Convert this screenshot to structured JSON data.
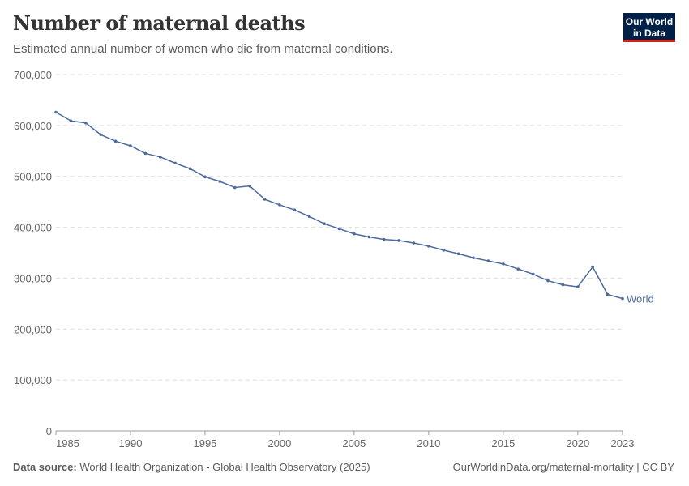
{
  "header": {
    "title": "Number of maternal deaths",
    "subtitle": "Estimated annual number of women who die from maternal conditions.",
    "logo": "Our World in Data"
  },
  "footer": {
    "source_label": "Data source:",
    "source": "World Health Organization - Global Health Observatory (2025)",
    "url": "OurWorldinData.org/maternal-mortality | CC BY"
  },
  "colors": {
    "line": "#4c6a9c",
    "grid": "#dddddd",
    "text": "#666666"
  },
  "chart_data": {
    "type": "line",
    "title": "Number of maternal deaths",
    "xlabel": "",
    "ylabel": "",
    "xlim": [
      1985,
      2023
    ],
    "ylim": [
      0,
      700000
    ],
    "grid": "horizontal dashed",
    "legend": "inline-right",
    "yticks": [
      0,
      100000,
      200000,
      300000,
      400000,
      500000,
      600000,
      700000
    ],
    "ytick_labels": [
      "0",
      "100,000",
      "200,000",
      "300,000",
      "400,000",
      "500,000",
      "600,000",
      "700,000"
    ],
    "xticks": [
      1985,
      1990,
      1995,
      2000,
      2005,
      2010,
      2015,
      2020,
      2023
    ],
    "series": [
      {
        "name": "World",
        "x": [
          1985,
          1986,
          1987,
          1988,
          1989,
          1990,
          1991,
          1992,
          1993,
          1994,
          1995,
          1996,
          1997,
          1998,
          1999,
          2000,
          2001,
          2002,
          2003,
          2004,
          2005,
          2006,
          2007,
          2008,
          2009,
          2010,
          2011,
          2012,
          2013,
          2014,
          2015,
          2016,
          2017,
          2018,
          2019,
          2020,
          2021,
          2022,
          2023
        ],
        "y": [
          626000,
          609000,
          605000,
          582000,
          569000,
          560000,
          545000,
          538000,
          526000,
          515000,
          499000,
          490000,
          478000,
          481000,
          455000,
          444000,
          434000,
          421000,
          407000,
          397000,
          387000,
          381000,
          376000,
          374000,
          369000,
          363000,
          355000,
          348000,
          340000,
          334000,
          328000,
          318000,
          308000,
          295000,
          287000,
          283000,
          322000,
          268000,
          260000
        ]
      }
    ]
  }
}
